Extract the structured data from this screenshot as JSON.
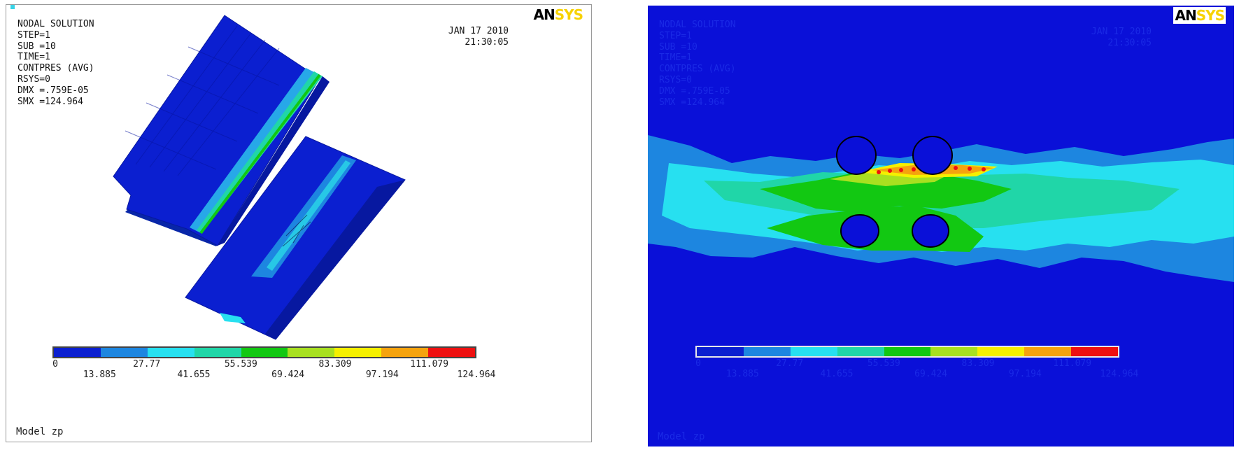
{
  "left_plot": {
    "title": "NODAL SOLUTION",
    "info_lines": [
      "STEP=1",
      "SUB =10",
      "TIME=1",
      "CONTPRES (AVG)",
      "RSYS=0",
      "DMX =.759E-05",
      "SMX =124.964"
    ],
    "date": "JAN 17 2010",
    "time": "21:30:05",
    "logo_an": "AN",
    "logo_sys": "SYS",
    "model_label": "Model zp",
    "legend_upper": [
      "0",
      "27.77",
      "55.539",
      "83.309",
      "111.079"
    ],
    "legend_lower": [
      "13.885",
      "41.655",
      "69.424",
      "97.194",
      "124.964"
    ]
  },
  "right_plot": {
    "title": "NODAL SOLUTION",
    "info_lines": [
      "STEP=1",
      "SUB =10",
      "TIME=1",
      "CONTPRES (AVG)",
      "RSYS=0",
      "DMX =.759E-05",
      "SMX =124.964"
    ],
    "date": "JAN 17 2010",
    "time": "21:30:05",
    "logo_an": "AN",
    "logo_sys": "SYS",
    "model_label": "Model zp",
    "legend_upper": [
      "0",
      "27.77",
      "55.539",
      "83.309",
      "111.079"
    ],
    "legend_lower": [
      "13.885",
      "41.655",
      "69.424",
      "97.194",
      "124.964"
    ]
  },
  "legend_colors": [
    "#0b1fd0",
    "#1d86e0",
    "#27e0f0",
    "#20d6a8",
    "#12c812",
    "#a8e020",
    "#f5f000",
    "#f5a30e",
    "#ee1010"
  ],
  "background_colors": {
    "left": "#ffffff",
    "right": "#0a10d8"
  }
}
